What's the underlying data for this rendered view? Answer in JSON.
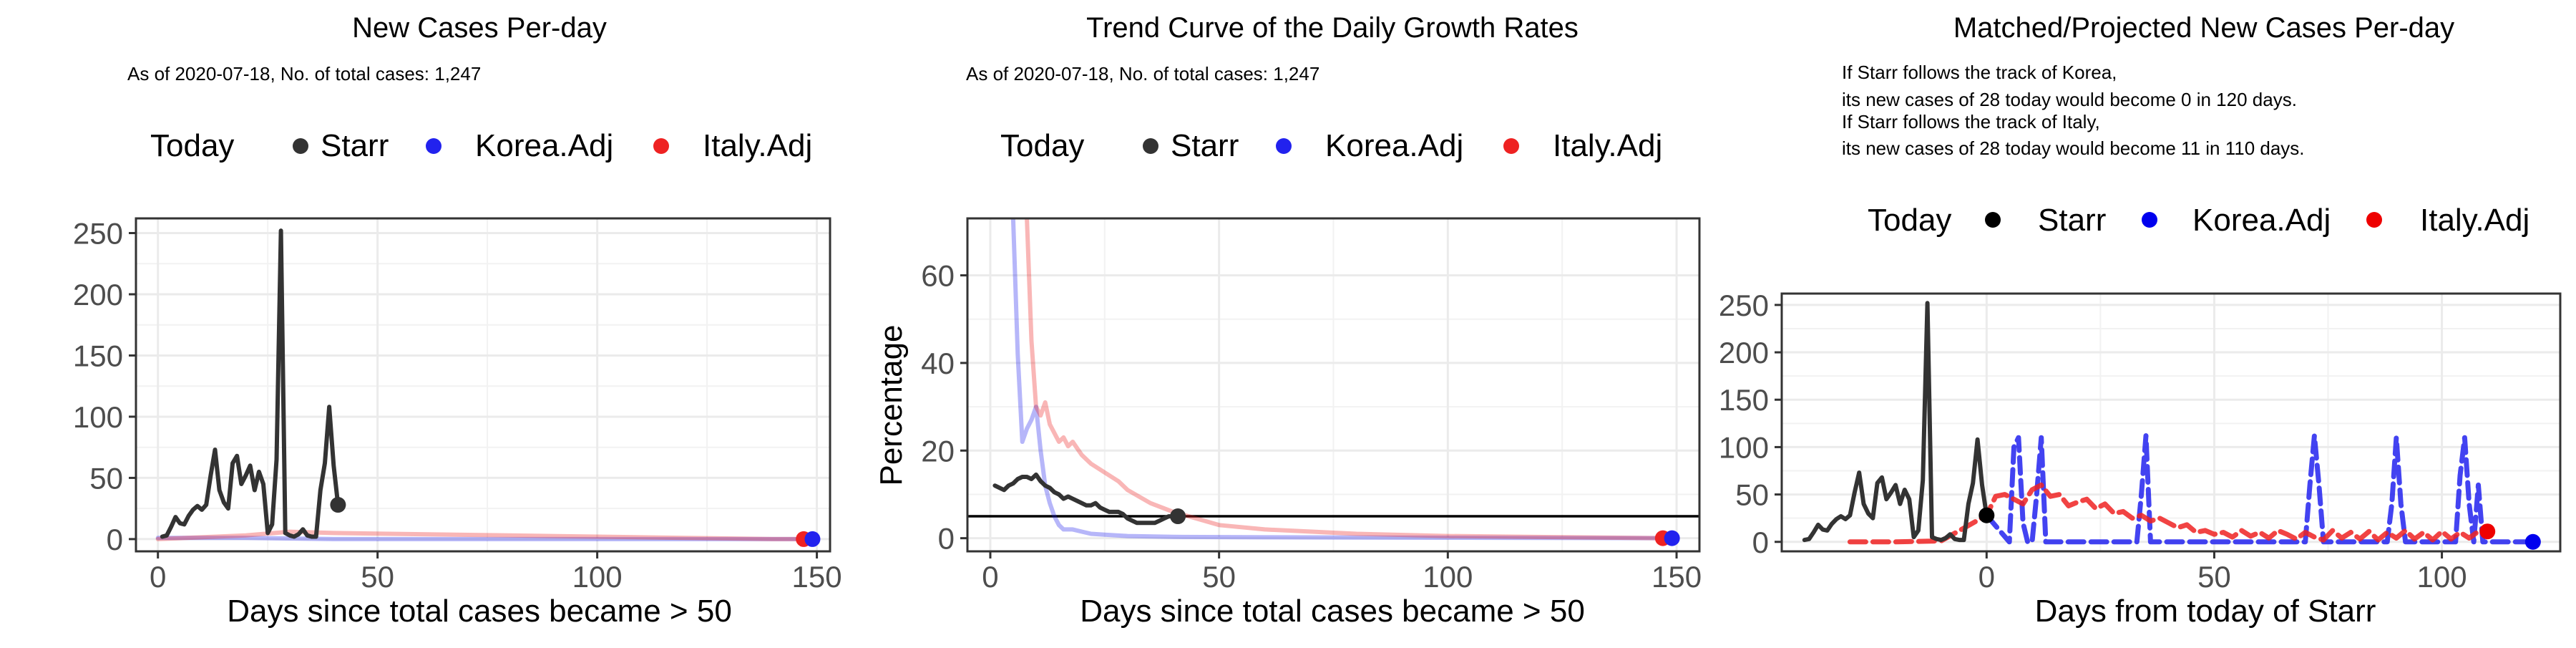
{
  "colors": {
    "today": "#333333",
    "starr": "#333333",
    "korea": "#2222ee",
    "italy": "#ee2222",
    "korea_light": "#aab0f5",
    "italy_light": "#f7b3b3",
    "grid": "#ebebeb",
    "panel_border": "#333333"
  },
  "panels": [
    {
      "title": "New Cases Per-day",
      "notes": [
        "As of 2020-07-18, No. of total cases: 1,247"
      ],
      "legend": [
        {
          "label": "Today",
          "marker": "none"
        },
        {
          "label": "Starr",
          "marker": "dot",
          "color": "#333333"
        },
        {
          "label": "Korea.Adj",
          "marker": "dot",
          "color": "#2222ee"
        },
        {
          "label": "Italy.Adj",
          "marker": "dot",
          "color": "#ee2222"
        }
      ],
      "xlabel": "Days since total cases became > 50",
      "ylabel": ""
    },
    {
      "title": "Trend Curve of the Daily Growth Rates",
      "notes": [
        "As of 2020-07-18, No. of total cases: 1,247"
      ],
      "legend": [
        {
          "label": "Today",
          "marker": "none"
        },
        {
          "label": "Starr",
          "marker": "dot",
          "color": "#333333"
        },
        {
          "label": "Korea.Adj",
          "marker": "dot",
          "color": "#2222ee"
        },
        {
          "label": "Italy.Adj",
          "marker": "dot",
          "color": "#ee2222"
        }
      ],
      "xlabel": "Days since total cases became > 50",
      "ylabel": "Percentage"
    },
    {
      "title": "Matched/Projected New Cases Per-day",
      "notes": [
        "If Starr follows the track of Korea,",
        "its new cases of 28 today would become 0 in 120 days.",
        "If Starr follows the track of Italy,",
        "its new cases of 28 today would become 11 in 110 days."
      ],
      "legend": [
        {
          "label": "Today",
          "marker": "none"
        },
        {
          "label": "Starr",
          "marker": "dot",
          "color": "#000000"
        },
        {
          "label": "Korea.Adj",
          "marker": "dot",
          "color": "#0000ee"
        },
        {
          "label": "Italy.Adj",
          "marker": "dot",
          "color": "#ee0000"
        }
      ],
      "xlabel": "Days from today of Starr",
      "ylabel": ""
    }
  ],
  "chart_data": [
    {
      "type": "line",
      "title": "New Cases Per-day",
      "xlabel": "Days since total cases became > 50",
      "ylabel": "",
      "xlim": [
        -5,
        153
      ],
      "ylim": [
        -10,
        262
      ],
      "xticks": [
        0,
        50,
        100,
        150
      ],
      "yticks": [
        0,
        50,
        100,
        150,
        200,
        250
      ],
      "grid": true,
      "legend_position": "top",
      "series": [
        {
          "name": "Starr",
          "color": "#333333",
          "style": "solid",
          "x": [
            1,
            2,
            3,
            4,
            5,
            6,
            7,
            8,
            9,
            10,
            11,
            12,
            13,
            14,
            15,
            16,
            17,
            18,
            19,
            20,
            21,
            22,
            23,
            24,
            25,
            26,
            27,
            28,
            29,
            30,
            31,
            32,
            33,
            34,
            35,
            36,
            37,
            38,
            39,
            40,
            41
          ],
          "y": [
            2,
            3,
            10,
            18,
            13,
            12,
            19,
            24,
            27,
            24,
            28,
            52,
            73,
            40,
            30,
            25,
            62,
            68,
            45,
            52,
            60,
            40,
            55,
            45,
            5,
            12,
            65,
            252,
            5,
            3,
            2,
            4,
            8,
            3,
            2,
            2,
            40,
            62,
            108,
            60,
            28
          ]
        },
        {
          "name": "Korea.Adj",
          "color": "#2222ee",
          "style": "faint",
          "x": [
            0,
            20,
            40,
            60,
            80,
            100,
            120,
            140,
            149
          ],
          "y": [
            1,
            1,
            0,
            0,
            0,
            0,
            0,
            0,
            0
          ]
        },
        {
          "name": "Italy.Adj",
          "color": "#ee2222",
          "style": "faint",
          "x": [
            0,
            20,
            30,
            40,
            60,
            80,
            100,
            120,
            140,
            147
          ],
          "y": [
            0,
            3,
            6,
            5,
            4,
            3,
            2,
            1,
            0,
            0
          ]
        }
      ],
      "points": [
        {
          "name": "Starr",
          "x": 41,
          "y": 28,
          "color": "#333333"
        },
        {
          "name": "Italy.Adj",
          "x": 147,
          "y": 0,
          "color": "#ee2222"
        },
        {
          "name": "Korea.Adj",
          "x": 149,
          "y": 0,
          "color": "#2222ee"
        }
      ]
    },
    {
      "type": "line",
      "title": "Trend Curve of the Daily Growth Rates",
      "xlabel": "Days since total cases became > 50",
      "ylabel": "Percentage",
      "xlim": [
        -5,
        155
      ],
      "ylim": [
        -3,
        73
      ],
      "xticks": [
        0,
        50,
        100,
        150
      ],
      "yticks": [
        0,
        20,
        40,
        60
      ],
      "grid": true,
      "hline": 5,
      "legend_position": "top",
      "series": [
        {
          "name": "Starr",
          "color": "#333333",
          "style": "solid",
          "x": [
            1,
            2,
            3,
            4,
            5,
            6,
            7,
            8,
            9,
            10,
            11,
            12,
            13,
            14,
            15,
            16,
            17,
            18,
            19,
            20,
            21,
            22,
            23,
            24,
            25,
            26,
            27,
            28,
            29,
            30,
            31,
            32,
            33,
            34,
            35,
            36,
            37,
            38,
            39,
            40,
            41
          ],
          "y": [
            12,
            11.5,
            11,
            12,
            12.5,
            13.5,
            14,
            14,
            13.5,
            14.5,
            13,
            12,
            11.5,
            10.5,
            10,
            9,
            9.5,
            9,
            8.5,
            8,
            7.5,
            7.5,
            8,
            7,
            6.5,
            6,
            6,
            6,
            5.5,
            4.5,
            4,
            3.5,
            3.5,
            3.5,
            3.5,
            3.5,
            4,
            4.5,
            5,
            5,
            5
          ]
        },
        {
          "name": "Korea.Adj",
          "color": "#2222ee",
          "style": "faint",
          "x": [
            5,
            6,
            7,
            8,
            9,
            10,
            11,
            12,
            13,
            14,
            15,
            16,
            18,
            20,
            22,
            25,
            30,
            40,
            60,
            100,
            149
          ],
          "y": [
            73,
            42,
            22,
            25,
            27,
            30,
            20,
            12,
            8,
            5,
            3,
            2,
            2,
            1.5,
            1,
            0.8,
            0.5,
            0.3,
            0.2,
            0.1,
            0
          ]
        },
        {
          "name": "Italy.Adj",
          "color": "#ee2222",
          "style": "faint",
          "x": [
            8,
            9,
            10,
            11,
            12,
            13,
            14,
            15,
            16,
            17,
            18,
            20,
            22,
            25,
            28,
            30,
            35,
            40,
            50,
            60,
            80,
            100,
            147
          ],
          "y": [
            73,
            45,
            30,
            28,
            31,
            26,
            24,
            22,
            23,
            21,
            22,
            19,
            17,
            15,
            13,
            11,
            8,
            6,
            3,
            2,
            1,
            0.5,
            0
          ]
        }
      ],
      "points": [
        {
          "name": "Starr",
          "x": 41,
          "y": 5,
          "color": "#333333"
        },
        {
          "name": "Italy.Adj",
          "x": 147,
          "y": 0,
          "color": "#ee2222"
        },
        {
          "name": "Korea.Adj",
          "x": 149,
          "y": 0,
          "color": "#2222ee"
        }
      ]
    },
    {
      "type": "line",
      "title": "Matched/Projected New Cases Per-day",
      "xlabel": "Days from today of Starr",
      "ylabel": "",
      "xlim": [
        -45,
        126
      ],
      "ylim": [
        -10,
        262
      ],
      "xticks": [
        0,
        50,
        100
      ],
      "yticks": [
        0,
        50,
        100,
        150,
        200,
        250
      ],
      "grid": true,
      "legend_position": "top",
      "series": [
        {
          "name": "Starr",
          "color": "#333333",
          "style": "solid",
          "x": [
            -40,
            -39,
            -38,
            -37,
            -36,
            -35,
            -34,
            -33,
            -32,
            -31,
            -30,
            -29,
            -28,
            -27,
            -26,
            -25,
            -24,
            -23,
            -22,
            -21,
            -20,
            -19,
            -18,
            -17,
            -16,
            -15,
            -14,
            -13,
            -12,
            -11,
            -10,
            -9,
            -8,
            -7,
            -6,
            -5,
            -4,
            -3,
            -2,
            -1,
            0
          ],
          "y": [
            2,
            3,
            10,
            18,
            13,
            12,
            19,
            24,
            27,
            24,
            28,
            52,
            73,
            40,
            30,
            25,
            62,
            68,
            45,
            52,
            60,
            40,
            55,
            45,
            5,
            12,
            65,
            252,
            5,
            3,
            2,
            4,
            8,
            3,
            2,
            2,
            40,
            62,
            108,
            60,
            28
          ]
        },
        {
          "name": "Korea.Adj",
          "color": "#2222ee",
          "style": "dashed",
          "x": [
            0,
            5,
            6,
            7,
            8,
            9,
            10,
            11,
            12,
            13,
            14,
            15,
            16,
            20,
            25,
            30,
            33,
            34,
            35,
            36,
            37,
            38,
            45,
            55,
            65,
            70,
            71,
            72,
            73,
            74,
            75,
            80,
            85,
            88,
            89,
            90,
            91,
            92,
            93,
            100,
            103,
            104,
            105,
            106,
            107,
            108,
            109,
            110,
            115,
            120
          ],
          "y": [
            28,
            0,
            100,
            110,
            20,
            0,
            0,
            50,
            110,
            0,
            0,
            0,
            0,
            0,
            0,
            0,
            0,
            50,
            112,
            0,
            0,
            0,
            0,
            0,
            0,
            0,
            60,
            112,
            60,
            0,
            0,
            0,
            0,
            0,
            40,
            110,
            40,
            0,
            0,
            0,
            0,
            70,
            110,
            40,
            0,
            60,
            0,
            0,
            0,
            0
          ]
        },
        {
          "name": "Italy.Adj",
          "color": "#ee2222",
          "style": "dashed",
          "x": [
            -30,
            -20,
            -10,
            0,
            2,
            4,
            6,
            8,
            10,
            12,
            14,
            16,
            18,
            20,
            22,
            24,
            26,
            28,
            30,
            32,
            34,
            36,
            38,
            40,
            42,
            44,
            46,
            48,
            50,
            52,
            54,
            56,
            58,
            60,
            62,
            64,
            66,
            68,
            70,
            72,
            74,
            76,
            78,
            80,
            82,
            84,
            86,
            88,
            90,
            92,
            94,
            96,
            98,
            100,
            102,
            104,
            106,
            108,
            110
          ],
          "y": [
            0,
            0,
            1,
            28,
            48,
            50,
            45,
            40,
            55,
            60,
            48,
            50,
            38,
            42,
            45,
            35,
            40,
            30,
            32,
            25,
            28,
            22,
            25,
            20,
            15,
            18,
            10,
            12,
            8,
            10,
            5,
            12,
            6,
            10,
            4,
            12,
            8,
            3,
            10,
            5,
            2,
            12,
            4,
            10,
            3,
            11,
            2,
            10,
            4,
            12,
            3,
            10,
            2,
            11,
            3,
            10,
            4,
            11,
            11
          ]
        }
      ],
      "points": [
        {
          "name": "Starr",
          "x": 0,
          "y": 28,
          "color": "#000000"
        },
        {
          "name": "Italy.Adj",
          "x": 110,
          "y": 11,
          "color": "#ee0000"
        },
        {
          "name": "Korea.Adj",
          "x": 120,
          "y": 0,
          "color": "#0000ee"
        }
      ]
    }
  ]
}
